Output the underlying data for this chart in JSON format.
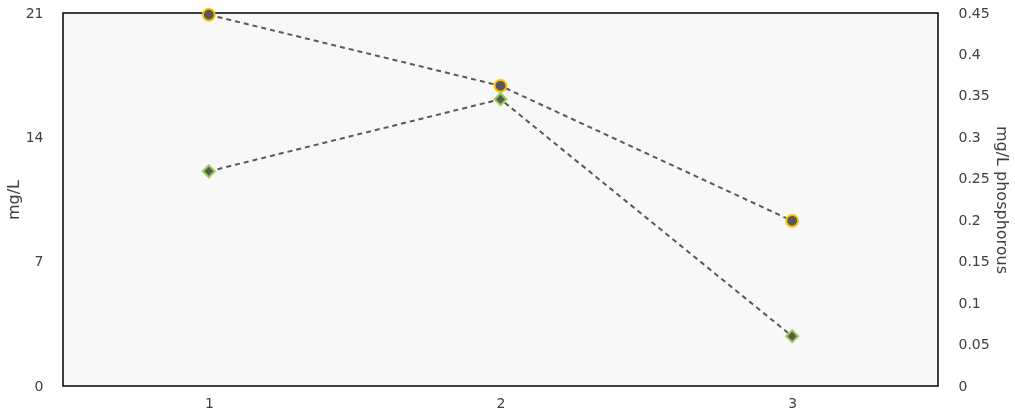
{
  "chart_data": {
    "type": "line",
    "ylabel": "mg/L",
    "y2label": "mg/L phosphorous",
    "x": [
      1,
      2,
      3
    ],
    "xlim": [
      0.5,
      3.5
    ],
    "xticks": [
      1,
      2,
      3
    ],
    "ylim": [
      0,
      21
    ],
    "yticks": [
      0,
      7,
      14,
      21
    ],
    "y2lim": [
      0,
      0.45
    ],
    "y2ticks": [
      0,
      0.05,
      0.1,
      0.15,
      0.2,
      0.25,
      0.3,
      0.35,
      0.4,
      0.45
    ],
    "series": [
      {
        "color": "#595959",
        "marker": "circle",
        "values": [
          20.9,
          16.9,
          9.3
        ]
      },
      {
        "color": "#595959",
        "marker": "diamond",
        "axis": "y2",
        "values": [
          0.259,
          0.346,
          0.06
        ]
      }
    ],
    "line_style": "dashed",
    "grid": false
  }
}
